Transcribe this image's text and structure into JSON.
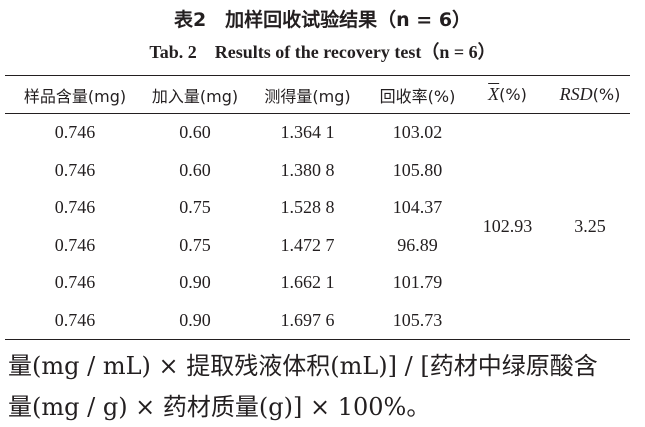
{
  "table_caption": {
    "title": "表2　加样回收试验结果（n = 6）",
    "subtitle": "Tab. 2　Results of the recovery test（n = 6）"
  },
  "table": {
    "headers": [
      "样品含量(mg)",
      "加入量(mg)",
      "测得量(mg)",
      "回收率(%)"
    ],
    "mean_header": {
      "symbol": "X",
      "unit": "(%)"
    },
    "rsd_header": {
      "symbol": "RSD",
      "unit": "(%)"
    },
    "rows": [
      [
        "0.746",
        "0.60",
        "1.364 1",
        "103.02"
      ],
      [
        "0.746",
        "0.60",
        "1.380 8",
        "105.80"
      ],
      [
        "0.746",
        "0.75",
        "1.528 8",
        "104.37"
      ],
      [
        "0.746",
        "0.75",
        "1.472 7",
        "96.89"
      ],
      [
        "0.746",
        "0.90",
        "1.662 1",
        "101.79"
      ],
      [
        "0.746",
        "0.90",
        "1.697 6",
        "105.73"
      ]
    ],
    "mean": "102.93",
    "rsd": "3.25"
  },
  "body_text": [
    "量(mg / mL) × 提取残液体积(mL)] / [药材中绿原酸含",
    "量(mg / g) × 药材质量(g)] × 100%。"
  ]
}
